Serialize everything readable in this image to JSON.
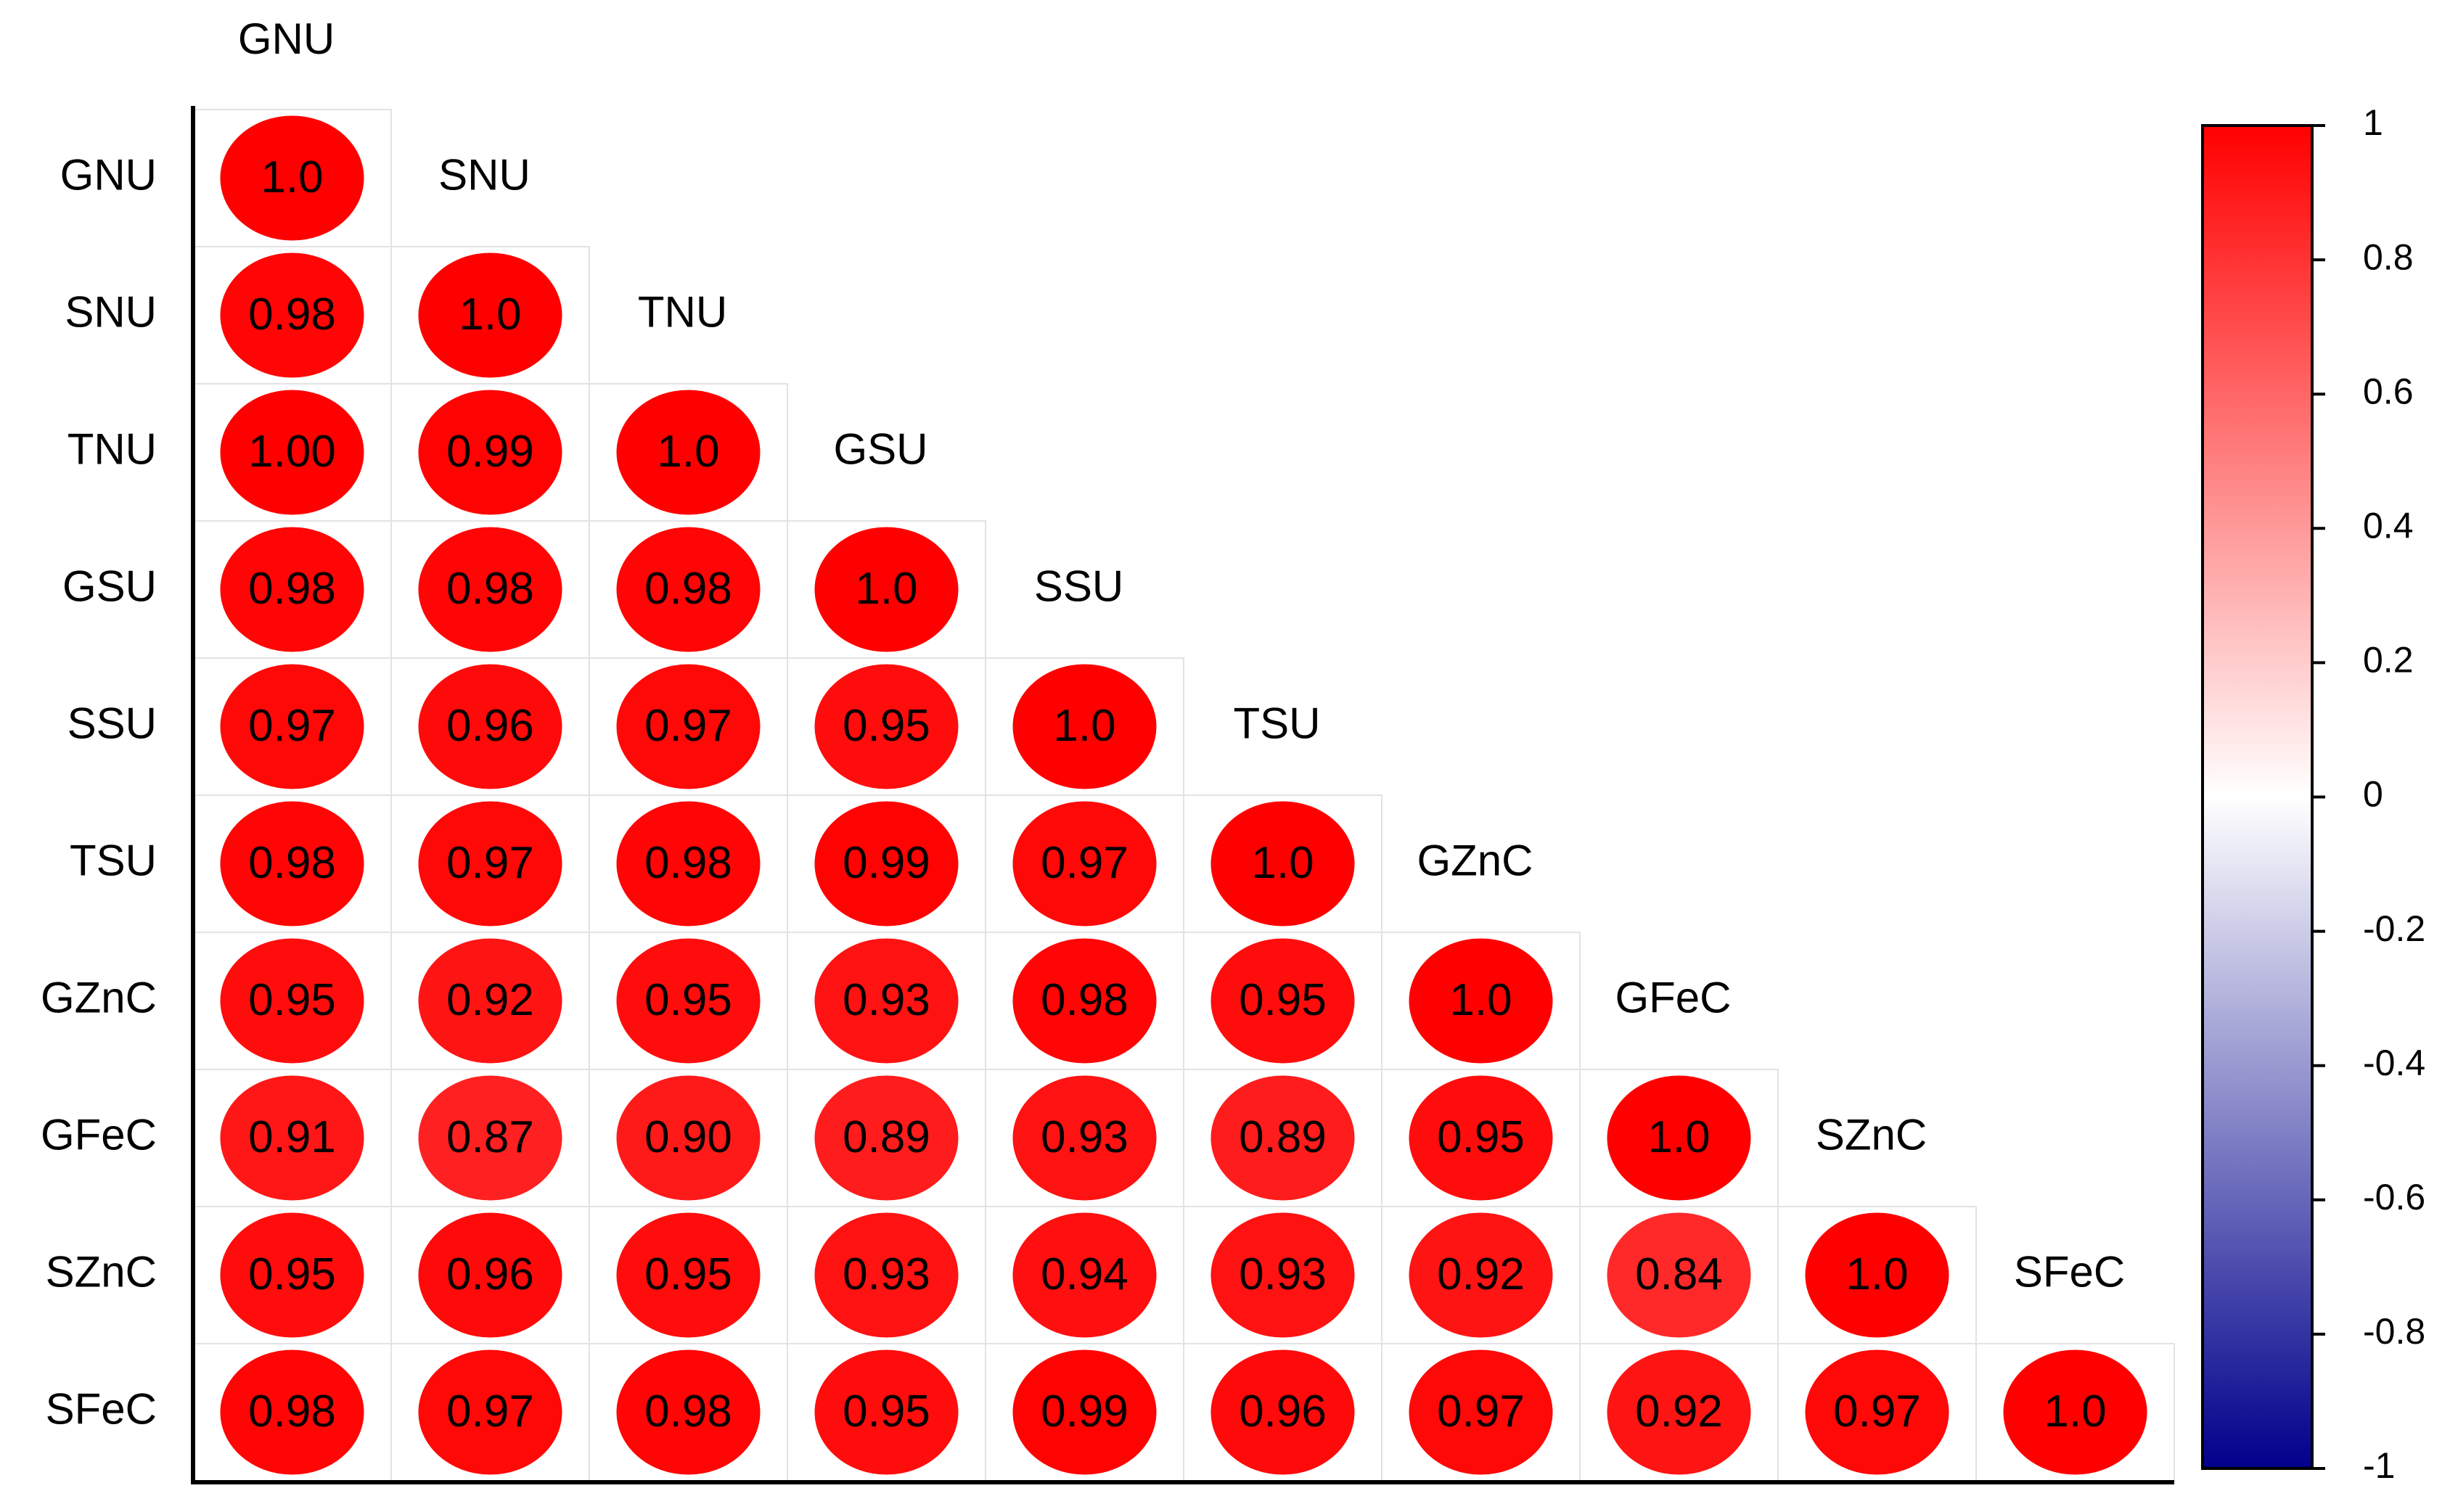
{
  "chart_data": {
    "type": "correlogram",
    "labels": [
      "GNU",
      "SNU",
      "TNU",
      "GSU",
      "SSU",
      "TSU",
      "GZnC",
      "GFeC",
      "SZnC",
      "SFeC"
    ],
    "matrix": [
      [
        1
      ],
      [
        0.98,
        1
      ],
      [
        1.0,
        0.99,
        1
      ],
      [
        0.98,
        0.98,
        0.98,
        1
      ],
      [
        0.97,
        0.96,
        0.97,
        0.95,
        1
      ],
      [
        0.98,
        0.97,
        0.98,
        0.99,
        0.97,
        1
      ],
      [
        0.95,
        0.92,
        0.95,
        0.93,
        0.98,
        0.95,
        1
      ],
      [
        0.91,
        0.87,
        0.9,
        0.89,
        0.93,
        0.89,
        0.95,
        1
      ],
      [
        0.95,
        0.96,
        0.95,
        0.93,
        0.94,
        0.93,
        0.92,
        0.84,
        1
      ],
      [
        0.98,
        0.97,
        0.98,
        0.95,
        0.99,
        0.96,
        0.97,
        0.92,
        0.97,
        1
      ]
    ],
    "value_labels": [
      [
        "1.0"
      ],
      [
        "0.98",
        "1.0"
      ],
      [
        "1.00",
        "0.99",
        "1.0"
      ],
      [
        "0.98",
        "0.98",
        "0.98",
        "1.0"
      ],
      [
        "0.97",
        "0.96",
        "0.97",
        "0.95",
        "1.0"
      ],
      [
        "0.98",
        "0.97",
        "0.98",
        "0.99",
        "0.97",
        "1.0"
      ],
      [
        "0.95",
        "0.92",
        "0.95",
        "0.93",
        "0.98",
        "0.95",
        "1.0"
      ],
      [
        "0.91",
        "0.87",
        "0.90",
        "0.89",
        "0.93",
        "0.89",
        "0.95",
        "1.0"
      ],
      [
        "0.95",
        "0.96",
        "0.95",
        "0.93",
        "0.94",
        "0.93",
        "0.92",
        "0.84",
        "1.0"
      ],
      [
        "0.98",
        "0.97",
        "0.98",
        "0.95",
        "0.99",
        "0.96",
        "0.97",
        "0.92",
        "0.97",
        "1.0"
      ]
    ],
    "colormap": [
      "#00008b",
      "#ffffff",
      "#ff0000"
    ],
    "clim": [
      -1,
      1
    ],
    "cticks": [
      1,
      0.8,
      0.6,
      0.4,
      0.2,
      0,
      -0.2,
      -0.4,
      -0.6,
      -0.8,
      -1
    ]
  }
}
